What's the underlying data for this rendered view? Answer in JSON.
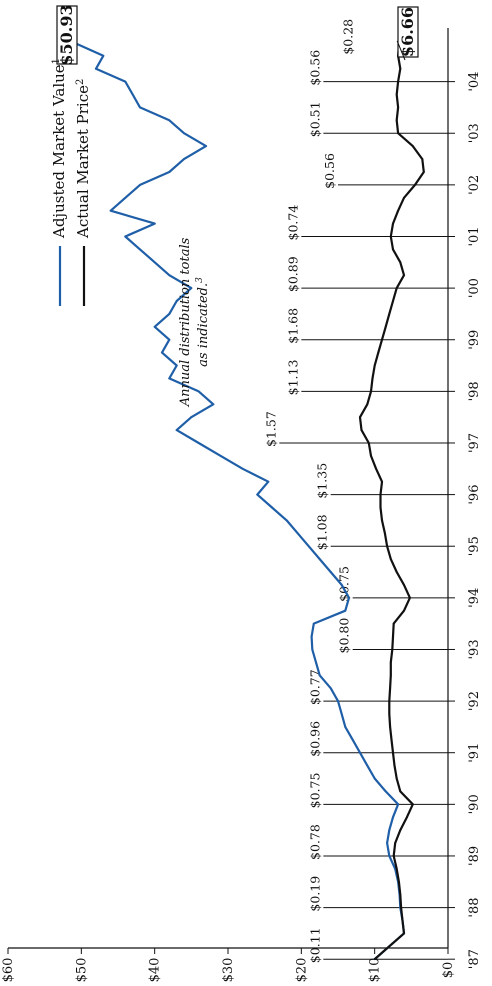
{
  "chart_data": {
    "type": "line",
    "x": [
      1987.0,
      1987.25,
      1987.5,
      1987.75,
      1988.0,
      1988.25,
      1988.5,
      1988.75,
      1989.0,
      1989.25,
      1989.5,
      1989.75,
      1990.0,
      1990.25,
      1990.5,
      1990.75,
      1991.0,
      1991.25,
      1991.5,
      1991.75,
      1992.0,
      1992.25,
      1992.5,
      1992.75,
      1993.0,
      1993.25,
      1993.5,
      1993.75,
      1994.0,
      1994.25,
      1994.5,
      1994.75,
      1995.0,
      1995.25,
      1995.5,
      1995.75,
      1996.0,
      1996.25,
      1996.5,
      1996.75,
      1997.0,
      1997.25,
      1997.5,
      1997.75,
      1998.0,
      1998.25,
      1998.5,
      1998.75,
      1999.0,
      1999.25,
      1999.5,
      1999.75,
      2000.0,
      2000.25,
      2000.5,
      2000.75,
      2001.0,
      2001.25,
      2001.5,
      2001.75,
      2002.0,
      2002.25,
      2002.5,
      2002.75,
      2003.0,
      2003.25,
      2003.5,
      2003.75,
      2004.0,
      2004.25,
      2004.5,
      2004.75
    ],
    "series": [
      {
        "name": "Adjusted Market Value",
        "color": "#1f5fa8",
        "values": [
          10.0,
          8.0,
          6.0,
          6.2,
          6.5,
          6.6,
          6.8,
          7.2,
          8.0,
          8.3,
          8.0,
          7.5,
          6.8,
          8.5,
          10.0,
          11.0,
          12.0,
          13.0,
          14.0,
          14.5,
          15.0,
          16.0,
          17.5,
          18.0,
          18.5,
          18.6,
          18.3,
          14.0,
          13.5,
          14.5,
          16.0,
          17.5,
          19.0,
          20.5,
          22.0,
          24.0,
          26.0,
          24.5,
          28.0,
          31.0,
          34.0,
          37.0,
          35.0,
          32.0,
          34.0,
          38.0,
          37.0,
          39.0,
          38.0,
          40.0,
          38.0,
          37.0,
          35.0,
          38.0,
          40.0,
          42.0,
          44.0,
          40.0,
          46.0,
          44.0,
          42.0,
          38.0,
          36.0,
          33.0,
          36.0,
          38.0,
          42.0,
          43.0,
          44.0,
          48.0,
          47.0,
          50.93
        ]
      },
      {
        "name": "Actual Market Price",
        "color": "#111111",
        "values": [
          10.0,
          8.0,
          6.0,
          6.2,
          6.4,
          6.5,
          6.7,
          7.0,
          7.4,
          7.2,
          6.5,
          5.6,
          4.8,
          6.5,
          7.0,
          7.3,
          7.5,
          7.7,
          7.9,
          8.0,
          8.0,
          7.9,
          7.8,
          7.8,
          7.6,
          7.5,
          7.4,
          6.0,
          5.2,
          6.0,
          7.0,
          7.8,
          8.3,
          8.6,
          9.0,
          9.2,
          9.2,
          9.0,
          9.8,
          10.5,
          10.8,
          11.8,
          12.0,
          11.0,
          10.5,
          10.3,
          10.0,
          9.5,
          9.0,
          8.5,
          8.0,
          7.5,
          7.0,
          6.0,
          6.5,
          7.5,
          7.8,
          7.5,
          6.8,
          6.0,
          4.5,
          3.3,
          3.5,
          4.8,
          6.8,
          7.0,
          6.8,
          7.0,
          6.8,
          6.5,
          6.8,
          6.66
        ]
      }
    ],
    "ylim": [
      0,
      60
    ],
    "xlim": [
      1986.5,
      2005.0
    ],
    "y_ticks": [
      "$0",
      "$10",
      "$20",
      "$30",
      "$40",
      "$50",
      "$60"
    ],
    "y_tick_values": [
      0,
      10,
      20,
      30,
      40,
      50,
      60
    ],
    "x_ticks": [
      "'87",
      "'88",
      "'89",
      "'90",
      "'91",
      "'92",
      "'93",
      "'94",
      "'95",
      "'96",
      "'97",
      "'98",
      "'99",
      "'00",
      "'01",
      "'02",
      "'03",
      "'04"
    ],
    "x_tick_values": [
      1987,
      1988,
      1989,
      1990,
      1991,
      1992,
      1993,
      1994,
      1995,
      1996,
      1997,
      1998,
      1999,
      2000,
      2001,
      2002,
      2003,
      2004
    ],
    "distributions": [
      {
        "year": 1987,
        "label": "$0.11",
        "top": 17.0
      },
      {
        "year": 1988,
        "label": "$0.19",
        "top": 17.0
      },
      {
        "year": 1989,
        "label": "$0.78",
        "top": 17.0
      },
      {
        "year": 1990,
        "label": "$0.75",
        "top": 17.0
      },
      {
        "year": 1991,
        "label": "$0.96",
        "top": 17.0
      },
      {
        "year": 1992,
        "label": "$0.77",
        "top": 17.0
      },
      {
        "year": 1993,
        "label": "$0.80",
        "top": 13.0
      },
      {
        "year": 1994,
        "label": "$0.75",
        "top": 13.0
      },
      {
        "year": 1995,
        "label": "$1.08",
        "top": 16.0
      },
      {
        "year": 1996,
        "label": "$1.35",
        "top": 16.0
      },
      {
        "year": 1997,
        "label": "$1.57",
        "top": 23.0
      },
      {
        "year": 1998,
        "label": "$1.13",
        "top": 20.0
      },
      {
        "year": 1999,
        "label": "$1.68",
        "top": 20.0
      },
      {
        "year": 2000,
        "label": "$0.89",
        "top": 20.0
      },
      {
        "year": 2001,
        "label": "$0.74",
        "top": 20.0
      },
      {
        "year": 2002,
        "label": "$0.56",
        "top": 15.0
      },
      {
        "year": 2003,
        "label": "$0.51",
        "top": 17.0
      },
      {
        "year": 2004,
        "label": "$0.56",
        "top": 17.0
      },
      {
        "year": 2004.6,
        "label": "$0.28",
        "top": 12.5
      }
    ],
    "end_labels": {
      "adjusted": "$50.93",
      "actual": "$6.66"
    },
    "legend": [
      {
        "label": "Adjusted Market Value",
        "sup": "1",
        "color": "#1f5fa8"
      },
      {
        "label": "Actual Market Price",
        "sup": "2",
        "color": "#111111"
      }
    ],
    "note": {
      "line1": "Annual distribution totals",
      "line2": "as indicated.",
      "sup": "3"
    }
  }
}
